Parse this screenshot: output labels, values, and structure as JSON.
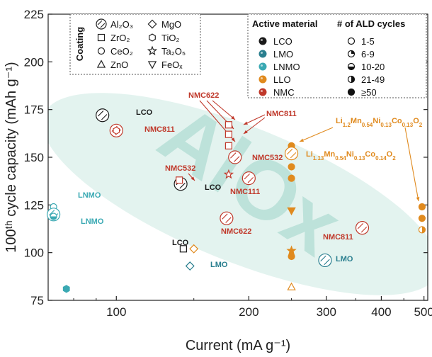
{
  "chart_data": {
    "type": "scatter",
    "title": "",
    "xlabel": "Current (mA g⁻¹)",
    "ylabel": "100ᵗʰ cycle capacity (mAh g⁻¹)",
    "x_scale": "log",
    "xlim": [
      70,
      510
    ],
    "ylim": [
      75,
      225
    ],
    "x_ticks": [
      {
        "value": 100,
        "label": "100"
      },
      {
        "value": 200,
        "label": "200"
      },
      {
        "value": 300,
        "label": "300"
      },
      {
        "value": 400,
        "label": "400"
      },
      {
        "value": 500,
        "label": "500"
      }
    ],
    "y_ticks": [
      {
        "value": 75,
        "label": "75"
      },
      {
        "value": 100,
        "label": "100"
      },
      {
        "value": 125,
        "label": "125"
      },
      {
        "value": 150,
        "label": "150"
      },
      {
        "value": 175,
        "label": "175"
      },
      {
        "value": 200,
        "label": "200"
      },
      {
        "value": 225,
        "label": "225"
      }
    ],
    "watermark": "AlOx",
    "colors": {
      "LCO": "#1a1a1a",
      "LMO": "#2a7f8f",
      "LNMO": "#3aa9b3",
      "LLO": "#e08a1e",
      "NMC": "#c0392b"
    },
    "legend_coating": {
      "title": "Coating",
      "items": [
        {
          "label": "Al₂O₃",
          "marker": "hatched-circle"
        },
        {
          "label": "ZrO₂",
          "marker": "square"
        },
        {
          "label": "CeO₂",
          "marker": "circle"
        },
        {
          "label": "ZnO",
          "marker": "triangle-up"
        },
        {
          "label": "MgO",
          "marker": "diamond"
        },
        {
          "label": "TiO₂",
          "marker": "hexagon"
        },
        {
          "label": "Ta₂O₅",
          "marker": "star"
        },
        {
          "label": "FeOₓ",
          "marker": "triangle-down"
        }
      ]
    },
    "legend_material": {
      "title": "Active material",
      "items": [
        {
          "label": "LCO",
          "color": "#1a1a1a"
        },
        {
          "label": "LMO",
          "color": "#2a7f8f"
        },
        {
          "label": "LNMO",
          "color": "#3aa9b3"
        },
        {
          "label": "LLO",
          "color": "#e08a1e"
        },
        {
          "label": "NMC",
          "color": "#c0392b"
        }
      ]
    },
    "legend_cycles": {
      "title": "# of ALD cycles",
      "items": [
        {
          "label": "1-5",
          "fill": "none"
        },
        {
          "label": "6-9",
          "fill": "quarter"
        },
        {
          "label": "10-20",
          "fill": "half-bottom"
        },
        {
          "label": "21-49",
          "fill": "half-right"
        },
        {
          "label": "≥50",
          "fill": "full"
        }
      ]
    },
    "points": [
      {
        "x": 93,
        "y": 172,
        "marker": "hatched-circle",
        "material": "LCO",
        "fill": "none",
        "big": true
      },
      {
        "x": 100,
        "y": 164,
        "marker": "hatched-circle",
        "material": "NMC",
        "fill": "none",
        "big": true
      },
      {
        "x": 100,
        "y": 164,
        "marker": "hexagon",
        "material": "NMC",
        "fill": "none"
      },
      {
        "x": 140,
        "y": 136,
        "marker": "hatched-circle",
        "material": "LCO",
        "fill": "none",
        "big": true
      },
      {
        "x": 139,
        "y": 138,
        "marker": "square",
        "material": "NMC",
        "fill": "none"
      },
      {
        "x": 142,
        "y": 102,
        "marker": "square",
        "material": "LCO",
        "fill": "none"
      },
      {
        "x": 150,
        "y": 102,
        "marker": "diamond",
        "material": "LLO",
        "fill": "none"
      },
      {
        "x": 147,
        "y": 93,
        "marker": "diamond",
        "material": "LMO",
        "fill": "none"
      },
      {
        "x": 180,
        "y": 167,
        "marker": "square",
        "material": "NMC",
        "fill": "none"
      },
      {
        "x": 180,
        "y": 162,
        "marker": "square",
        "material": "NMC",
        "fill": "none"
      },
      {
        "x": 180,
        "y": 156,
        "marker": "square",
        "material": "NMC",
        "fill": "none"
      },
      {
        "x": 180,
        "y": 141,
        "marker": "star",
        "material": "NMC",
        "fill": "none"
      },
      {
        "x": 186,
        "y": 150,
        "marker": "hatched-circle",
        "material": "NMC",
        "fill": "none",
        "big": true
      },
      {
        "x": 200,
        "y": 139,
        "marker": "hatched-circle",
        "material": "NMC",
        "fill": "none",
        "big": true
      },
      {
        "x": 178,
        "y": 118,
        "marker": "hatched-circle",
        "material": "NMC",
        "fill": "none",
        "big": true
      },
      {
        "x": 250,
        "y": 156,
        "marker": "circle",
        "material": "LLO",
        "fill": "full"
      },
      {
        "x": 250,
        "y": 152,
        "marker": "hatched-circle",
        "material": "LLO",
        "fill": "none",
        "big": true
      },
      {
        "x": 250,
        "y": 145,
        "marker": "circle",
        "material": "LLO",
        "fill": "full"
      },
      {
        "x": 250,
        "y": 139,
        "marker": "circle",
        "material": "LLO",
        "fill": "full"
      },
      {
        "x": 250,
        "y": 122,
        "marker": "triangle-down",
        "material": "LLO",
        "fill": "full"
      },
      {
        "x": 250,
        "y": 101,
        "marker": "star",
        "material": "LLO",
        "fill": "full"
      },
      {
        "x": 250,
        "y": 98,
        "marker": "circle",
        "material": "LLO",
        "fill": "full"
      },
      {
        "x": 250,
        "y": 82,
        "marker": "triangle-up",
        "material": "LLO",
        "fill": "none"
      },
      {
        "x": 298,
        "y": 96,
        "marker": "hatched-circle",
        "material": "LMO",
        "fill": "none",
        "big": true
      },
      {
        "x": 362,
        "y": 113,
        "marker": "hatched-circle",
        "material": "NMC",
        "fill": "none",
        "big": true
      },
      {
        "x": 495,
        "y": 124,
        "marker": "circle",
        "material": "LLO",
        "fill": "full"
      },
      {
        "x": 495,
        "y": 118,
        "marker": "circle",
        "material": "LLO",
        "fill": "full"
      },
      {
        "x": 495,
        "y": 112,
        "marker": "circle",
        "material": "LLO",
        "fill": "half-right"
      },
      {
        "x": 72,
        "y": 124,
        "marker": "circle",
        "material": "LNMO",
        "fill": "none"
      },
      {
        "x": 72,
        "y": 120,
        "marker": "hatched-circle",
        "material": "LNMO",
        "fill": "none",
        "big": true
      },
      {
        "x": 72,
        "y": 119,
        "marker": "circle",
        "material": "LNMO",
        "fill": "half-bottom"
      },
      {
        "x": 77,
        "y": 81,
        "marker": "hexagon",
        "material": "LNMO",
        "fill": "half-right"
      }
    ]
  },
  "labels": {
    "lco_1": "LCO",
    "nmc811_left": "NMC811",
    "nmc622_top": "NMC622",
    "nmc811_top": "NMC811",
    "nmc532_left": "NMC532",
    "lco_2": "LCO",
    "nmc532_mid": "NMC532",
    "nmc111": "NMC111",
    "nmc622_bottom": "NMC622",
    "lco_3": "LCO",
    "lmo_1": "LMO",
    "lmo_2": "LMO",
    "lnmo_1": "LNMO",
    "lnmo_2": "LNMO",
    "nmc811_right": "NMC811",
    "llo_1_parts": [
      "Li",
      "1.2",
      "Mn",
      "0.54",
      "Ni",
      "0.13",
      "Co",
      "0.13",
      "O",
      "2"
    ],
    "llo_2_parts": [
      "Li",
      "1.13",
      "Mn",
      "0.54",
      "Ni",
      "0.13",
      "Co",
      "0.14",
      "O",
      "2"
    ]
  }
}
